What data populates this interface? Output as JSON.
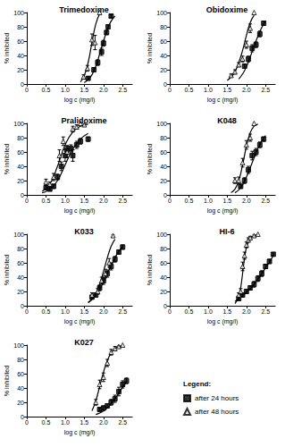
{
  "legend": "lower right",
  "legend_title": "Legend:",
  "chart_data": [
    {
      "type": "scatter",
      "title": "Trimedoxime",
      "x_label": "log c (mg/l)",
      "y_label": "% inhibited",
      "xlim": [
        0,
        2.75
      ],
      "ylim": [
        0,
        100
      ],
      "xticks": [
        0,
        0.5,
        {
          "value": 1,
          "label": "1.0"
        },
        1.5,
        {
          "value": 2,
          "label": "2.0"
        },
        2.5
      ],
      "yticks": [
        0,
        20,
        40,
        60,
        80,
        100
      ],
      "grid": false,
      "series": [
        {
          "name": "after 24 hours",
          "color": "#000000",
          "marker": "square",
          "line_style": "solid",
          "x": [
            1.6,
            1.75,
            1.85,
            1.95,
            2.0,
            2.08,
            2.12,
            2.2
          ],
          "values": [
            8,
            20,
            30,
            45,
            57,
            72,
            80,
            95
          ],
          "error": [
            2,
            3,
            4,
            5,
            4,
            3,
            3,
            2
          ],
          "fit": {
            "x": [
              1.5,
              1.6,
              1.7,
              1.8,
              1.9,
              2.0,
              2.1,
              2.2,
              2.3
            ],
            "values": [
              2,
              6,
              13,
              25,
              42,
              60,
              76,
              88,
              95
            ]
          }
        },
        {
          "name": "after 48 hours",
          "color": "#000000",
          "marker": "triangle-open",
          "line_style": "solid",
          "x": [
            1.48,
            1.58,
            1.7,
            1.78,
            1.9
          ],
          "values": [
            10,
            22,
            62,
            58,
            100
          ],
          "error": [
            3,
            4,
            8,
            10,
            0
          ],
          "fit": {
            "x": [
              1.4,
              1.5,
              1.6,
              1.7,
              1.8,
              1.9
            ],
            "values": [
              3,
              12,
              30,
              58,
              84,
              98
            ]
          }
        }
      ]
    },
    {
      "type": "scatter",
      "title": "Obidoxime",
      "x_label": "log c (mg/l)",
      "y_label": "% inhibited",
      "xlim": [
        0,
        2.75
      ],
      "ylim": [
        0,
        100
      ],
      "xticks": [
        0,
        0.5,
        {
          "value": 1,
          "label": "1.0"
        },
        1.5,
        {
          "value": 2,
          "label": "2.0"
        },
        2.5
      ],
      "yticks": [
        0,
        20,
        40,
        60,
        80,
        100
      ],
      "grid": false,
      "series": [
        {
          "name": "after 24 hours",
          "color": "#000000",
          "marker": "square",
          "line_style": "solid",
          "x": [
            1.95,
            2.05,
            2.15,
            2.25,
            2.35,
            2.45
          ],
          "values": [
            25,
            35,
            50,
            55,
            70,
            85
          ],
          "error": [
            3,
            4,
            5,
            4,
            4,
            3
          ],
          "fit": {
            "x": [
              1.8,
              1.9,
              2.0,
              2.1,
              2.2,
              2.3,
              2.4,
              2.5
            ],
            "values": [
              7,
              14,
              24,
              38,
              53,
              67,
              79,
              88
            ]
          }
        },
        {
          "name": "after 48 hours",
          "color": "#000000",
          "marker": "triangle-open",
          "line_style": "solid",
          "x": [
            1.6,
            1.7,
            1.8,
            1.9,
            2.0,
            2.1,
            2.2
          ],
          "values": [
            12,
            17,
            27,
            35,
            55,
            78,
            100
          ],
          "error": [
            2,
            3,
            3,
            4,
            5,
            6,
            0
          ],
          "fit": {
            "x": [
              1.5,
              1.6,
              1.7,
              1.8,
              1.9,
              2.0,
              2.1,
              2.2
            ],
            "values": [
              5,
              10,
              17,
              30,
              47,
              68,
              86,
              96
            ]
          }
        }
      ]
    },
    {
      "type": "scatter",
      "title": "Pralidoxime",
      "x_label": "log c (mg/l)",
      "y_label": "% inhibited",
      "xlim": [
        0,
        2.75
      ],
      "ylim": [
        0,
        100
      ],
      "xticks": [
        0,
        0.5,
        {
          "value": 1,
          "label": "1.0"
        },
        1.5,
        {
          "value": 2,
          "label": "2.0"
        },
        2.5
      ],
      "yticks": [
        0,
        20,
        40,
        60,
        80,
        100
      ],
      "grid": false,
      "series": [
        {
          "name": "after 24 hours",
          "color": "#000000",
          "marker": "square",
          "line_style": "solid",
          "x": [
            0.5,
            0.6,
            0.7,
            0.8,
            0.9,
            1.0,
            1.05,
            1.15,
            1.2,
            1.3,
            1.4,
            1.6
          ],
          "values": [
            10,
            8,
            12,
            25,
            40,
            55,
            63,
            65,
            55,
            70,
            75,
            78
          ],
          "error": [
            3,
            2,
            3,
            4,
            6,
            8,
            6,
            5,
            8,
            5,
            4,
            3
          ],
          "fit": {
            "x": [
              0.4,
              0.6,
              0.8,
              1.0,
              1.2,
              1.4,
              1.6
            ],
            "values": [
              3,
              8,
              20,
              42,
              64,
              78,
              86
            ]
          }
        },
        {
          "name": "after 48 hours",
          "color": "#000000",
          "marker": "triangle-open",
          "line_style": "solid",
          "x": [
            0.5,
            0.6,
            0.7,
            0.85,
            0.95,
            1.05,
            1.2,
            1.3,
            1.4,
            1.5
          ],
          "values": [
            18,
            15,
            25,
            55,
            75,
            60,
            92,
            95,
            100,
            98
          ],
          "error": [
            4,
            3,
            5,
            8,
            6,
            8,
            4,
            3,
            0,
            2
          ],
          "fit": {
            "x": [
              0.4,
              0.6,
              0.8,
              1.0,
              1.2,
              1.4,
              1.6
            ],
            "values": [
              5,
              15,
              40,
              70,
              88,
              96,
              99
            ]
          }
        }
      ]
    },
    {
      "type": "scatter",
      "title": "K048",
      "x_label": "log c (mg/l)",
      "y_label": "% inhibited",
      "xlim": [
        0,
        2.75
      ],
      "ylim": [
        0,
        100
      ],
      "xticks": [
        0,
        0.5,
        {
          "value": 1,
          "label": "1.0"
        },
        1.5,
        {
          "value": 2,
          "label": "2.0"
        },
        2.5
      ],
      "yticks": [
        0,
        20,
        40,
        60,
        80,
        100
      ],
      "grid": false,
      "series": [
        {
          "name": "after 24 hours",
          "color": "#000000",
          "marker": "square",
          "line_style": "solid",
          "x": [
            1.85,
            1.95,
            2.05,
            2.15,
            2.25,
            2.35,
            2.45
          ],
          "values": [
            12,
            20,
            35,
            55,
            60,
            70,
            78
          ],
          "error": [
            3,
            4,
            5,
            6,
            5,
            4,
            3
          ],
          "fit": {
            "x": [
              1.7,
              1.8,
              1.9,
              2.0,
              2.1,
              2.2,
              2.3,
              2.4,
              2.5
            ],
            "values": [
              3,
              7,
              14,
              25,
              38,
              52,
              65,
              75,
              83
            ]
          }
        },
        {
          "name": "after 48 hours",
          "color": "#000000",
          "marker": "triangle-open",
          "line_style": "solid",
          "x": [
            1.7,
            1.8,
            1.9,
            2.0,
            2.1,
            2.2
          ],
          "values": [
            20,
            20,
            45,
            70,
            80,
            100
          ],
          "error": [
            4,
            5,
            6,
            6,
            5,
            0
          ],
          "fit": {
            "x": [
              1.6,
              1.7,
              1.8,
              1.9,
              2.0,
              2.1,
              2.2,
              2.3
            ],
            "values": [
              3,
              8,
              20,
              42,
              68,
              87,
              96,
              99
            ]
          }
        }
      ]
    },
    {
      "type": "scatter",
      "title": "K033",
      "x_label": "log c (mg/l)",
      "y_label": "% inhibited",
      "xlim": [
        0,
        2.75
      ],
      "ylim": [
        0,
        100
      ],
      "xticks": [
        0,
        0.5,
        {
          "value": 1,
          "label": "1.0"
        },
        1.5,
        {
          "value": 2,
          "label": "2.0"
        },
        2.5
      ],
      "yticks": [
        0,
        20,
        40,
        60,
        80,
        100
      ],
      "grid": false,
      "series": [
        {
          "name": "after 24 hours",
          "color": "#000000",
          "marker": "square",
          "line_style": "solid",
          "x": [
            1.7,
            1.8,
            1.9,
            2.0,
            2.1,
            2.2,
            2.3,
            2.4,
            2.5
          ],
          "values": [
            12,
            15,
            25,
            35,
            45,
            55,
            65,
            75,
            82
          ],
          "error": [
            2,
            3,
            4,
            5,
            5,
            5,
            4,
            3,
            3
          ],
          "fit": {
            "x": [
              1.6,
              1.7,
              1.8,
              1.9,
              2.0,
              2.1,
              2.2,
              2.3,
              2.4,
              2.5
            ],
            "values": [
              5,
              9,
              15,
              23,
              33,
              45,
              56,
              67,
              76,
              83
            ]
          }
        },
        {
          "name": "after 48 hours",
          "color": "#000000",
          "marker": "triangle-open",
          "line_style": "solid",
          "x": [
            1.7,
            1.85,
            1.95,
            2.05,
            2.15,
            2.25
          ],
          "values": [
            15,
            20,
            35,
            45,
            60,
            98
          ],
          "error": [
            3,
            4,
            5,
            6,
            6,
            2
          ],
          "fit": {
            "x": [
              1.6,
              1.7,
              1.8,
              1.9,
              2.0,
              2.1,
              2.2,
              2.3
            ],
            "values": [
              4,
              9,
              17,
              30,
              48,
              67,
              83,
              93
            ]
          }
        }
      ]
    },
    {
      "type": "scatter",
      "title": "HI-6",
      "x_label": "log c (mg/l)",
      "y_label": "% inhibited",
      "xlim": [
        0,
        2.75
      ],
      "ylim": [
        0,
        100
      ],
      "xticks": [
        0,
        0.5,
        {
          "value": 1,
          "label": "1.0"
        },
        1.5,
        {
          "value": 2,
          "label": "2.0"
        },
        2.5
      ],
      "yticks": [
        0,
        20,
        40,
        60,
        80,
        100
      ],
      "grid": false,
      "series": [
        {
          "name": "after 24 hours",
          "color": "#000000",
          "marker": "square",
          "line_style": "solid",
          "x": [
            1.8,
            1.9,
            2.0,
            2.1,
            2.2,
            2.3,
            2.4,
            2.5,
            2.6,
            2.7
          ],
          "values": [
            10,
            15,
            20,
            25,
            30,
            38,
            45,
            55,
            62,
            72
          ],
          "error": [
            2,
            3,
            3,
            3,
            4,
            4,
            4,
            3,
            3,
            2
          ],
          "fit": {
            "x": [
              1.7,
              1.8,
              1.9,
              2.0,
              2.1,
              2.2,
              2.3,
              2.4,
              2.5,
              2.6,
              2.7
            ],
            "values": [
              6,
              10,
              14,
              19,
              24,
              30,
              37,
              45,
              53,
              61,
              70
            ]
          }
        },
        {
          "name": "after 48 hours",
          "color": "#000000",
          "marker": "triangle-open",
          "line_style": "solid",
          "x": [
            1.8,
            1.85,
            1.9,
            1.95,
            2.0,
            2.05,
            2.1,
            2.2,
            2.3
          ],
          "values": [
            15,
            20,
            55,
            70,
            85,
            92,
            95,
            98,
            100
          ],
          "error": [
            3,
            4,
            6,
            5,
            4,
            3,
            2,
            2,
            0
          ],
          "fit": {
            "x": [
              1.7,
              1.8,
              1.85,
              1.9,
              1.95,
              2.0,
              2.1,
              2.2,
              2.3
            ],
            "values": [
              3,
              12,
              25,
              45,
              66,
              81,
              94,
              98,
              99
            ]
          }
        }
      ]
    },
    {
      "type": "scatter",
      "title": "K027",
      "x_label": "log c (mg/l)",
      "y_label": "% inhibited",
      "xlim": [
        0,
        2.75
      ],
      "ylim": [
        0,
        100
      ],
      "xticks": [
        0,
        0.5,
        {
          "value": 1,
          "label": "1.0"
        },
        1.5,
        {
          "value": 2,
          "label": "2.0"
        },
        2.5
      ],
      "yticks": [
        0,
        20,
        40,
        60,
        80,
        100
      ],
      "grid": false,
      "series": [
        {
          "name": "after 24 hours",
          "color": "#000000",
          "marker": "square",
          "line_style": "solid",
          "x": [
            1.9,
            2.0,
            2.1,
            2.2,
            2.3,
            2.4,
            2.5,
            2.6
          ],
          "values": [
            10,
            12,
            15,
            20,
            25,
            35,
            45,
            50
          ],
          "error": [
            2,
            3,
            3,
            4,
            5,
            6,
            5,
            4
          ],
          "fit": {
            "x": [
              1.8,
              1.9,
              2.0,
              2.1,
              2.2,
              2.3,
              2.4,
              2.5,
              2.6
            ],
            "values": [
              3,
              5,
              8,
              12,
              18,
              25,
              33,
              41,
              49
            ]
          }
        },
        {
          "name": "after 48 hours",
          "color": "#000000",
          "marker": "triangle-open",
          "line_style": "solid",
          "x": [
            1.8,
            1.9,
            2.0,
            2.1,
            2.2,
            2.3,
            2.4,
            2.5
          ],
          "values": [
            20,
            45,
            55,
            75,
            90,
            95,
            98,
            100
          ],
          "error": [
            4,
            6,
            6,
            5,
            4,
            3,
            2,
            0
          ],
          "fit": {
            "x": [
              1.7,
              1.8,
              1.9,
              2.0,
              2.1,
              2.2,
              2.3,
              2.4,
              2.5
            ],
            "values": [
              8,
              22,
              42,
              62,
              78,
              89,
              95,
              98,
              99
            ]
          }
        }
      ]
    }
  ]
}
